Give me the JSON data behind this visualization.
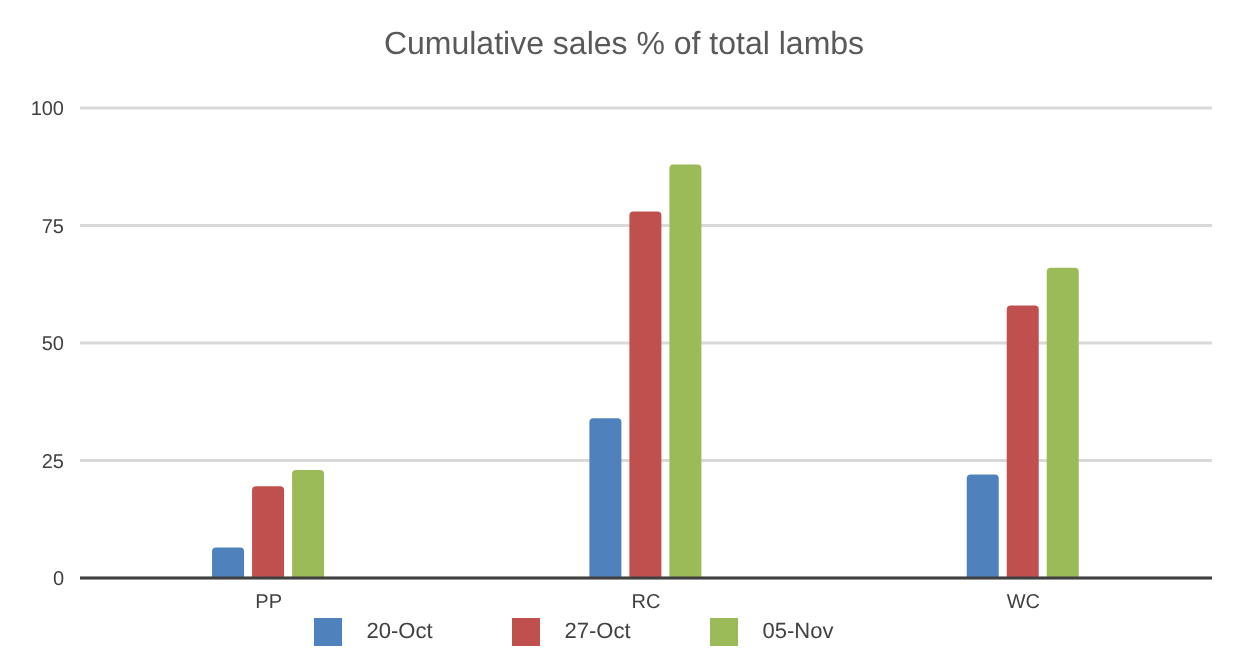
{
  "chart_data": {
    "type": "bar",
    "title": "Cumulative sales % of total lambs",
    "categories": [
      "PP",
      "RC",
      "WC"
    ],
    "series": [
      {
        "name": "20-Oct",
        "color": "#4f81bd",
        "values": [
          6.5,
          34,
          22
        ]
      },
      {
        "name": "27-Oct",
        "color": "#c0504d",
        "values": [
          19.5,
          78,
          58
        ]
      },
      {
        "name": "05-Nov",
        "color": "#9bbb59",
        "values": [
          23,
          88,
          66
        ]
      }
    ],
    "ylim": [
      0,
      100
    ],
    "yticks": [
      0,
      25,
      50,
      75,
      100
    ],
    "grid": "y",
    "legend": "bottom"
  }
}
